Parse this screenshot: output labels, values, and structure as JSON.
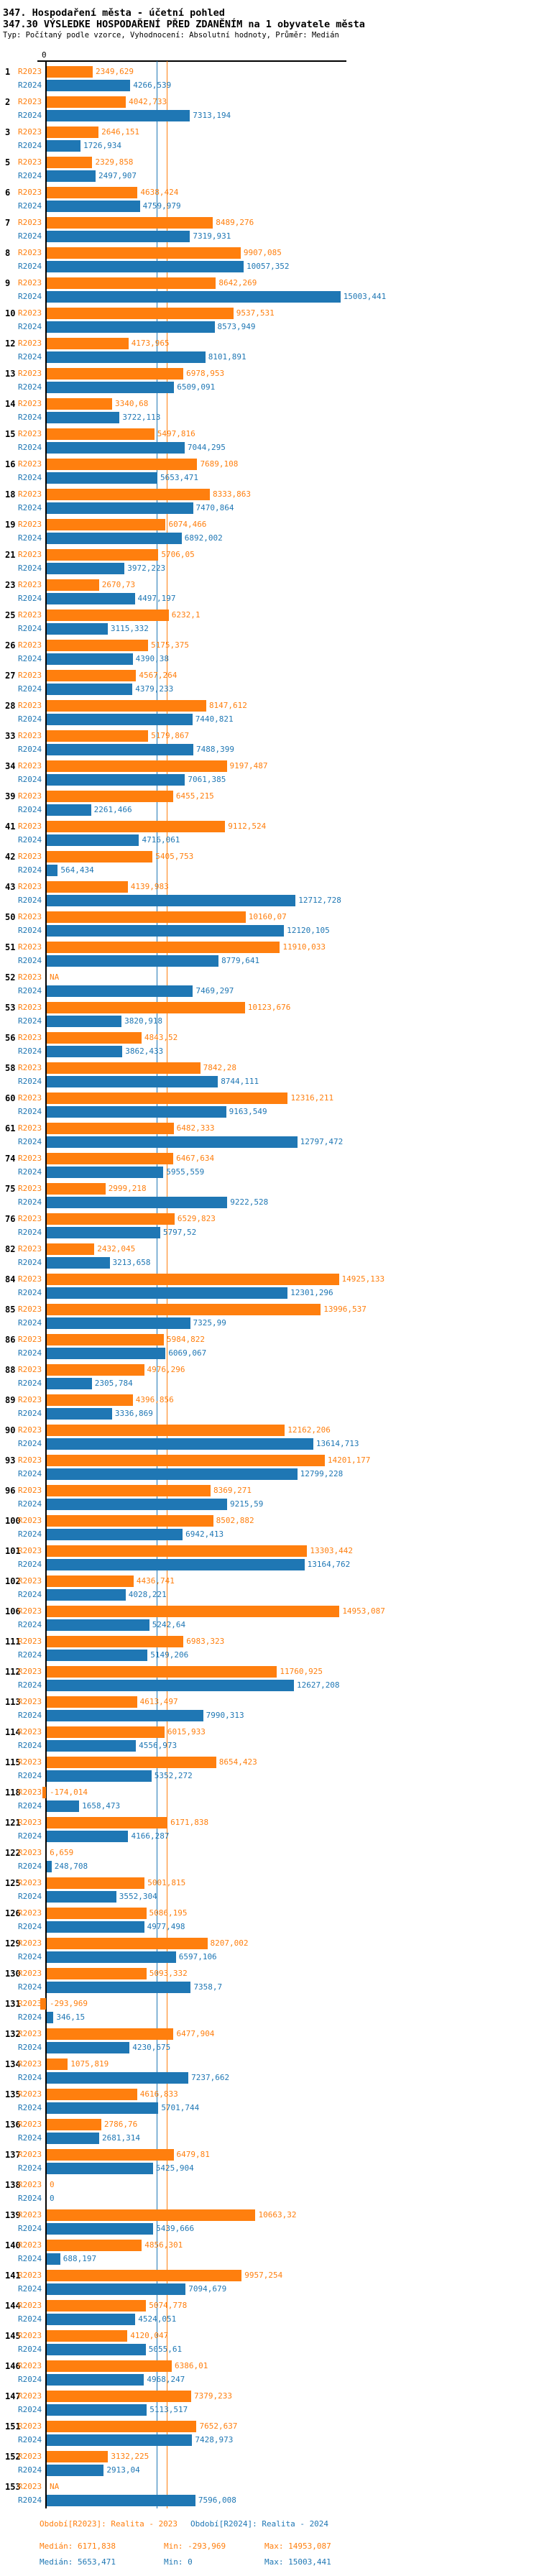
{
  "title": "347. Hospodaření města - účetní pohled",
  "subtitle": "347.30 VÝSLEDKE HOSPODAŘENÍ PŘED ZDANĚNÍM na 1 obyvatele města",
  "meta": "Typ: Počítaný podle vzorce, Vyhodnocení: Absolutní hodnoty, Průměr: Medián",
  "axis": {
    "zero_label": "0"
  },
  "colors": {
    "r2023": "#ff7f0e",
    "r2024": "#1f77b4",
    "axis": "#000000"
  },
  "series_labels": {
    "r2023": "R2023",
    "r2024": "R2024"
  },
  "chart_data": {
    "type": "bar",
    "orientation": "horizontal",
    "title": "347.30 VÝSLEDKE HOSPODAŘENÍ PŘED ZDANĚNÍM na 1 obyvatele města",
    "series_names": [
      "R2023",
      "R2024"
    ],
    "x_axis": {
      "zero_tick": "0",
      "approx_xmax": 15003.441
    },
    "medians": {
      "r2023": 6171.838,
      "r2024": 5653.471
    },
    "decimal_separator": ",",
    "rows": [
      [
        "1",
        "2349,629",
        "4266,539"
      ],
      [
        "2",
        "4042,733",
        "7313,194"
      ],
      [
        "3",
        "2646,151",
        "1726,934"
      ],
      [
        "5",
        "2329,858",
        "2497,907"
      ],
      [
        "6",
        "4638,424",
        "4759,979"
      ],
      [
        "7",
        "8489,276",
        "7319,931"
      ],
      [
        "8",
        "9907,085",
        "10057,352"
      ],
      [
        "9",
        "8642,269",
        "15003,441"
      ],
      [
        "10",
        "9537,531",
        "8573,949"
      ],
      [
        "12",
        "4173,965",
        "8101,891"
      ],
      [
        "13",
        "6978,953",
        "6509,091"
      ],
      [
        "14",
        "3340,68",
        "3722,113"
      ],
      [
        "15",
        "5497,816",
        "7044,295"
      ],
      [
        "16",
        "7689,108",
        "5653,471"
      ],
      [
        "18",
        "8333,863",
        "7470,864"
      ],
      [
        "19",
        "6074,466",
        "6892,002"
      ],
      [
        "21",
        "5706,05",
        "3972,223"
      ],
      [
        "23",
        "2670,73",
        "4497,197"
      ],
      [
        "25",
        "6232,1",
        "3115,332"
      ],
      [
        "26",
        "5175,375",
        "4390,38"
      ],
      [
        "27",
        "4567,264",
        "4379,233"
      ],
      [
        "28",
        "8147,612",
        "7440,821"
      ],
      [
        "33",
        "5179,867",
        "7488,399"
      ],
      [
        "34",
        "9197,487",
        "7061,385"
      ],
      [
        "39",
        "6455,215",
        "2261,466"
      ],
      [
        "41",
        "9112,524",
        "4716,061"
      ],
      [
        "42",
        "5405,753",
        "564,434"
      ],
      [
        "43",
        "4139,983",
        "12712,728"
      ],
      [
        "50",
        "10160,07",
        "12120,105"
      ],
      [
        "51",
        "11910,033",
        "8779,641"
      ],
      [
        "52",
        "NA",
        "7469,297"
      ],
      [
        "53",
        "10123,676",
        "3820,918"
      ],
      [
        "56",
        "4843,52",
        "3862,433"
      ],
      [
        "58",
        "7842,28",
        "8744,111"
      ],
      [
        "60",
        "12316,211",
        "9163,549"
      ],
      [
        "61",
        "6482,333",
        "12797,472"
      ],
      [
        "74",
        "6467,634",
        "5955,559"
      ],
      [
        "75",
        "2999,218",
        "9222,528"
      ],
      [
        "76",
        "6529,823",
        "5797,52"
      ],
      [
        "82",
        "2432,045",
        "3213,658"
      ],
      [
        "84",
        "14925,133",
        "12301,296"
      ],
      [
        "85",
        "13996,537",
        "7325,99"
      ],
      [
        "86",
        "5984,822",
        "6069,067"
      ],
      [
        "88",
        "4976,296",
        "2305,784"
      ],
      [
        "89",
        "4396,856",
        "3336,869"
      ],
      [
        "90",
        "12162,206",
        "13614,713"
      ],
      [
        "93",
        "14201,177",
        "12799,228"
      ],
      [
        "96",
        "8369,271",
        "9215,59"
      ],
      [
        "100",
        "8502,882",
        "6942,413"
      ],
      [
        "101",
        "13303,442",
        "13164,762"
      ],
      [
        "102",
        "4436,741",
        "4028,221"
      ],
      [
        "106",
        "14953,087",
        "5242,64"
      ],
      [
        "111",
        "6983,323",
        "5149,206"
      ],
      [
        "112",
        "11760,925",
        "12627,208"
      ],
      [
        "113",
        "4613,497",
        "7990,313"
      ],
      [
        "114",
        "6015,933",
        "4556,973"
      ],
      [
        "115",
        "8654,423",
        "5352,272"
      ],
      [
        "118",
        "-174,014",
        "1658,473"
      ],
      [
        "121",
        "6171,838",
        "4166,287"
      ],
      [
        "122",
        "6,659",
        "248,708"
      ],
      [
        "125",
        "5001,815",
        "3552,304"
      ],
      [
        "126",
        "5086,195",
        "4977,498"
      ],
      [
        "129",
        "8207,002",
        "6597,106"
      ],
      [
        "130",
        "5093,332",
        "7358,7"
      ],
      [
        "131",
        "-293,969",
        "346,15"
      ],
      [
        "132",
        "6477,904",
        "4230,675"
      ],
      [
        "134",
        "1075,819",
        "7237,662"
      ],
      [
        "135",
        "4616,833",
        "5701,744"
      ],
      [
        "136",
        "2786,76",
        "2681,314"
      ],
      [
        "137",
        "6479,81",
        "5425,904"
      ],
      [
        "138",
        "0",
        "0"
      ],
      [
        "139",
        "10663,32",
        "5439,666"
      ],
      [
        "140",
        "4856,301",
        "688,197"
      ],
      [
        "141",
        "9957,254",
        "7094,679"
      ],
      [
        "144",
        "5074,778",
        "4524,051"
      ],
      [
        "145",
        "4120,047",
        "5055,61"
      ],
      [
        "146",
        "6386,01",
        "4968,247"
      ],
      [
        "147",
        "7379,233",
        "5113,517"
      ],
      [
        "151",
        "7652,637",
        "7428,973"
      ],
      [
        "152",
        "3132,225",
        "2913,04"
      ],
      [
        "153",
        "NA",
        "7596,008"
      ]
    ]
  },
  "legend": {
    "r2023": {
      "period": "Období[R2023]: Realita - 2023",
      "median": "Medián: 6171,838",
      "min": "Min: -293,969",
      "max": "Max: 14953,087"
    },
    "r2024": {
      "period": "Období[R2024]: Realita - 2024",
      "median": "Medián: 5653,471",
      "min": "Min: 0",
      "max": "Max: 15003,441"
    }
  }
}
